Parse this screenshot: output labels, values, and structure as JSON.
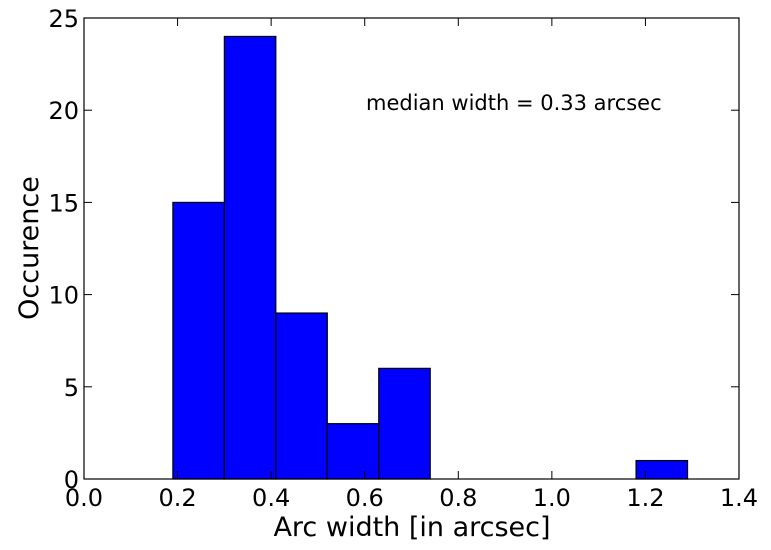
{
  "chart_data": {
    "type": "bar",
    "xlabel": "Arc width [in arcsec]",
    "ylabel": "Occurence",
    "xlim": [
      0.0,
      1.4
    ],
    "ylim": [
      0,
      25
    ],
    "xticks": [
      "0.0",
      "0.2",
      "0.4",
      "0.6",
      "0.8",
      "1.0",
      "1.2",
      "1.4"
    ],
    "yticks": [
      "0",
      "5",
      "10",
      "15",
      "20",
      "25"
    ],
    "bin_edges": [
      0.19,
      0.3,
      0.41,
      0.52,
      0.63,
      0.74,
      0.85,
      0.96,
      1.07,
      1.18,
      1.29
    ],
    "values": [
      15,
      24,
      9,
      3,
      6,
      0,
      0,
      0,
      0,
      1
    ],
    "bar_color": "#0000ff",
    "annotation": "median width = 0.33 arcsec",
    "grid": false
  }
}
